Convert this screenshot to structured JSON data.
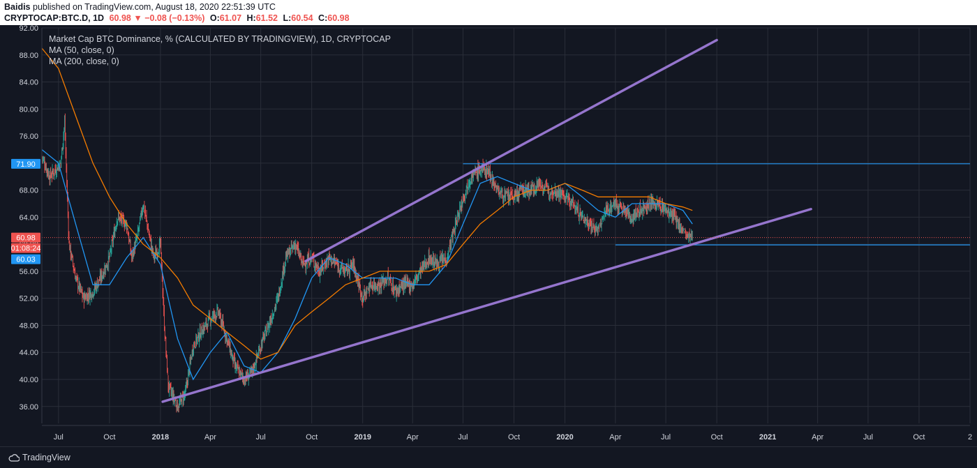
{
  "header": {
    "author": "Baidis",
    "published": "published on TradingView.com, August 18, 2020 22:51:39 UTC",
    "symbol": "CRYPTOCAP:BTC.D, 1D",
    "last": "60.98",
    "arrow": "▼",
    "change": "−0.08 (−0.13%)",
    "o_label": "O:",
    "o": "61.07",
    "h_label": "H:",
    "h": "61.52",
    "l_label": "L:",
    "l": "60.54",
    "c_label": "C:",
    "c": "60.98"
  },
  "legend": {
    "title": "Market Cap BTC Dominance, % (CALCULATED BY TRADINGVIEW), 1D, CRYPTOCAP",
    "ma50": "MA (50, close, 0)",
    "ma200": "MA (200, close, 0)"
  },
  "footer": {
    "brand": "TradingView"
  },
  "colors": {
    "background": "#131722",
    "grid": "#2a2e39",
    "candle_up": "#26a69a",
    "candle_down": "#ef5350",
    "ma50": "#2196f3",
    "ma200": "#f57c00",
    "trendline": "#9575cd",
    "hline": "#2196f3",
    "price_tag": "#ef5350"
  },
  "chart_data": {
    "type": "line",
    "title": "Market Cap BTC Dominance, % (CALCULATED BY TRADINGVIEW), 1D, CRYPTOCAP",
    "y_axis": {
      "ticks": [
        "92.00",
        "88.00",
        "84.00",
        "80.00",
        "76.00",
        "72.00",
        "68.00",
        "64.00",
        "60.00",
        "56.00",
        "52.00",
        "48.00",
        "44.00",
        "40.00",
        "36.00"
      ],
      "tick_values": [
        92,
        88,
        84,
        80,
        76,
        72,
        68,
        64,
        60,
        56,
        52,
        48,
        44,
        40,
        36
      ],
      "range": [
        33.5,
        92
      ]
    },
    "x_axis": {
      "ticks": [
        "Jul",
        "Oct",
        "2018",
        "Apr",
        "Jul",
        "Oct",
        "2019",
        "Apr",
        "Jul",
        "Oct",
        "2020",
        "Apr",
        "Jul",
        "Oct",
        "2021",
        "Apr",
        "Jul",
        "Oct",
        "2"
      ],
      "tick_dates": [
        "2017-07",
        "2017-10",
        "2018-01",
        "2018-04",
        "2018-07",
        "2018-10",
        "2019-01",
        "2019-04",
        "2019-07",
        "2019-10",
        "2020-01",
        "2020-04",
        "2020-07",
        "2020-10",
        "2021-01",
        "2021-04",
        "2021-07",
        "2021-10",
        "2022-01"
      ],
      "range": [
        "2017-06",
        "2022-01"
      ]
    },
    "price_tags": [
      {
        "label": "71.90",
        "value": 71.9,
        "color": "#2196f3"
      },
      {
        "label": "60.98",
        "value": 60.98,
        "color": "#ef5350"
      },
      {
        "label": "01:08:24",
        "value": 59.9,
        "color": "#ef5350"
      },
      {
        "label": "60.03",
        "value": 60.03,
        "color": "#2196f3"
      }
    ],
    "hlines": [
      {
        "value": 71.9,
        "from": "2019-07"
      },
      {
        "value": 59.9,
        "from": "2020-04"
      }
    ],
    "trendlines": [
      {
        "from": [
          "2018-01-05",
          36.7
        ],
        "to": [
          "2021-03-20",
          65.2
        ]
      },
      {
        "from": [
          "2018-09-20",
          57.5
        ],
        "to": [
          "2020-10-01",
          90.2
        ]
      }
    ],
    "series": [
      {
        "name": "BTC.D",
        "x": [
          "2017-06-01",
          "2017-06-15",
          "2017-06-25",
          "2017-07-05",
          "2017-07-12",
          "2017-07-20",
          "2017-08-01",
          "2017-08-15",
          "2017-09-01",
          "2017-09-15",
          "2017-10-01",
          "2017-10-15",
          "2017-11-01",
          "2017-11-10",
          "2017-11-20",
          "2017-12-01",
          "2017-12-10",
          "2017-12-20",
          "2018-01-01",
          "2018-01-08",
          "2018-01-15",
          "2018-02-01",
          "2018-02-15",
          "2018-03-01",
          "2018-03-15",
          "2018-04-01",
          "2018-04-15",
          "2018-05-01",
          "2018-05-15",
          "2018-06-01",
          "2018-06-15",
          "2018-07-01",
          "2018-07-15",
          "2018-08-01",
          "2018-08-15",
          "2018-09-01",
          "2018-09-15",
          "2018-10-01",
          "2018-10-15",
          "2018-11-01",
          "2018-11-15",
          "2018-12-01",
          "2018-12-15",
          "2019-01-01",
          "2019-01-15",
          "2019-02-01",
          "2019-02-15",
          "2019-03-01",
          "2019-03-15",
          "2019-04-01",
          "2019-04-15",
          "2019-05-01",
          "2019-05-15",
          "2019-06-01",
          "2019-06-15",
          "2019-07-01",
          "2019-07-15",
          "2019-08-01",
          "2019-08-15",
          "2019-09-01",
          "2019-09-15",
          "2019-10-01",
          "2019-10-15",
          "2019-11-01",
          "2019-11-15",
          "2019-12-01",
          "2019-12-15",
          "2020-01-01",
          "2020-01-15",
          "2020-02-01",
          "2020-02-15",
          "2020-03-01",
          "2020-03-15",
          "2020-04-01",
          "2020-04-15",
          "2020-05-01",
          "2020-05-15",
          "2020-06-01",
          "2020-06-15",
          "2020-07-01",
          "2020-07-15",
          "2020-08-01",
          "2020-08-10",
          "2020-08-18"
        ],
        "values": [
          73,
          70,
          71,
          72,
          78,
          60,
          55,
          52,
          53,
          55,
          58,
          64,
          63,
          58,
          61,
          66,
          62,
          58,
          60,
          48,
          39,
          36,
          38,
          45,
          47,
          49,
          50,
          46,
          42,
          40,
          41,
          45,
          48,
          52,
          58,
          60,
          57,
          58,
          56,
          58,
          57,
          56,
          57,
          52,
          54,
          54,
          55,
          53,
          54,
          54,
          56,
          58,
          57,
          58,
          62,
          67,
          70,
          71,
          71,
          68,
          67,
          67,
          68,
          68,
          69,
          68,
          68,
          67,
          66,
          64,
          63,
          62,
          65,
          66,
          65,
          64,
          65,
          66,
          66,
          65,
          64,
          62,
          61,
          60.98
        ]
      },
      {
        "name": "MA (50, close, 0)",
        "x": [
          "2017-06-01",
          "2017-07-01",
          "2017-08-01",
          "2017-09-01",
          "2017-10-01",
          "2017-11-01",
          "2017-12-01",
          "2018-01-01",
          "2018-02-01",
          "2018-03-01",
          "2018-04-01",
          "2018-05-01",
          "2018-06-01",
          "2018-07-01",
          "2018-08-01",
          "2018-09-01",
          "2018-10-01",
          "2018-11-01",
          "2018-12-01",
          "2019-01-01",
          "2019-02-01",
          "2019-03-01",
          "2019-04-01",
          "2019-05-01",
          "2019-06-01",
          "2019-07-01",
          "2019-08-01",
          "2019-09-01",
          "2019-10-01",
          "2019-11-01",
          "2019-12-01",
          "2020-01-01",
          "2020-02-01",
          "2020-03-01",
          "2020-04-01",
          "2020-05-01",
          "2020-06-01",
          "2020-07-01",
          "2020-08-01",
          "2020-08-18"
        ],
        "values": [
          74,
          72,
          63,
          54,
          54,
          58,
          61,
          57,
          46,
          40,
          44,
          47,
          42,
          41,
          44,
          49,
          55,
          58,
          57,
          55,
          55,
          55,
          54,
          54,
          57,
          63,
          69,
          70,
          69,
          68,
          68,
          69,
          67,
          65,
          64,
          66,
          66,
          66,
          65,
          63
        ]
      },
      {
        "name": "MA (200, close, 0)",
        "x": [
          "2017-06-01",
          "2017-07-01",
          "2017-08-01",
          "2017-09-01",
          "2017-10-01",
          "2017-11-01",
          "2017-12-01",
          "2018-01-01",
          "2018-02-01",
          "2018-03-01",
          "2018-04-01",
          "2018-05-01",
          "2018-06-01",
          "2018-07-01",
          "2018-08-01",
          "2018-09-01",
          "2018-10-01",
          "2018-11-01",
          "2018-12-01",
          "2019-01-01",
          "2019-02-01",
          "2019-03-01",
          "2019-04-01",
          "2019-05-01",
          "2019-06-01",
          "2019-07-01",
          "2019-08-01",
          "2019-09-01",
          "2019-10-01",
          "2019-11-01",
          "2019-12-01",
          "2020-01-01",
          "2020-02-01",
          "2020-03-01",
          "2020-04-01",
          "2020-05-01",
          "2020-06-01",
          "2020-07-01",
          "2020-08-01",
          "2020-08-18"
        ],
        "values": [
          89,
          86,
          79,
          72,
          67,
          63,
          60,
          58,
          55,
          51,
          49,
          47,
          45,
          43,
          44,
          48,
          50,
          52,
          54,
          55,
          56,
          56,
          56,
          56,
          57,
          60,
          63,
          65,
          67,
          68,
          68,
          69,
          68,
          67,
          67,
          67,
          67,
          66,
          65.5,
          65
        ]
      }
    ]
  }
}
